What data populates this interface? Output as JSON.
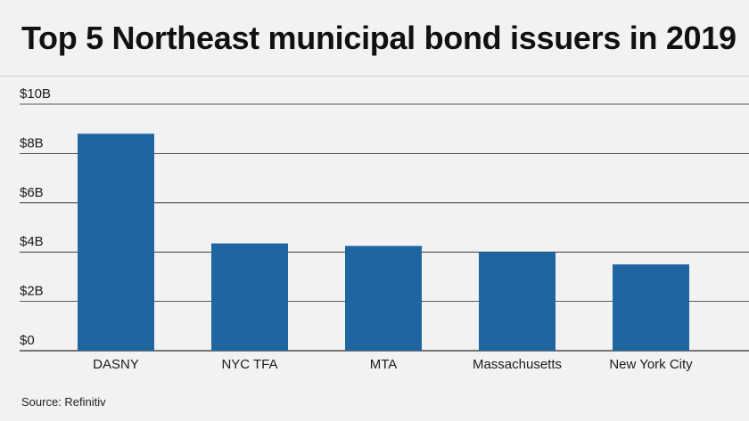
{
  "title": "Top 5 Northeast municipal bond issuers in 2019",
  "source": "Source: Refinitiv",
  "colors": {
    "bar": "#1f66a0",
    "grid": "#2a2a2a",
    "background": "#f2f2f2"
  },
  "chart_data": {
    "type": "bar",
    "title": "Top 5 Northeast municipal bond issuers in 2019",
    "categories": [
      "DASNY",
      "NYC TFA",
      "MTA",
      "Massachusetts",
      "New York City"
    ],
    "values": [
      8.8,
      4.35,
      4.25,
      4.0,
      3.5
    ],
    "unit": "billion USD",
    "ylim": [
      0,
      10
    ],
    "yticks": [
      0,
      2,
      4,
      6,
      8,
      10
    ],
    "ytick_labels": [
      "$0",
      "$2B",
      "$4B",
      "$6B",
      "$8B",
      "$10B"
    ],
    "xlabel": "",
    "ylabel": "",
    "grid": true
  }
}
